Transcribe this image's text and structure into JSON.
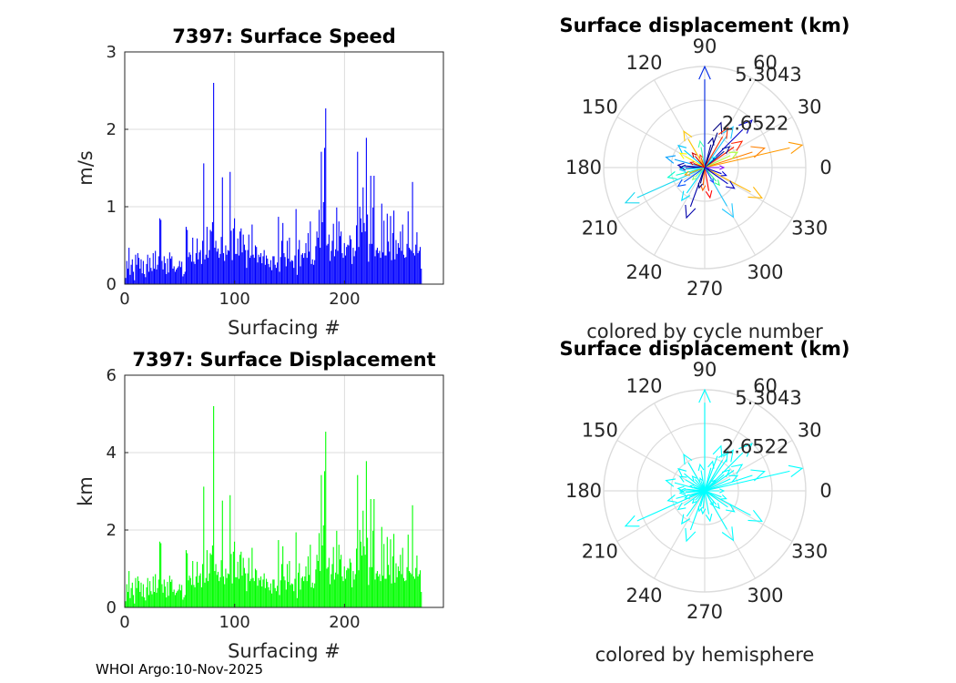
{
  "footer": "WHOI Argo:10-Nov-2025",
  "colors": {
    "speed_bars": "#0000ff",
    "displacement_bars": "#00ff00",
    "hemisphere": "#00ffff",
    "grid": "#dcdcdc",
    "axis": "#262626"
  },
  "chart_data": [
    {
      "type": "bar",
      "title": "7397: Surface Speed",
      "xlabel": "Surfacing #",
      "ylabel": "m/s",
      "xlim": [
        0,
        290
      ],
      "ylim": [
        0,
        3
      ],
      "xticks": [
        "0",
        "100",
        "200"
      ],
      "yticks": [
        "0",
        "1",
        "2",
        "3"
      ],
      "grid": true,
      "values": [
        0.08,
        0.3,
        0.2,
        0.47,
        0.12,
        0.25,
        0.32,
        0.16,
        0.05,
        0.38,
        0.25,
        0.4,
        0.34,
        0.2,
        0.32,
        0.14,
        0.3,
        0.13,
        0.09,
        0.26,
        0.38,
        0.16,
        0.34,
        0.21,
        0.17,
        0.4,
        0.2,
        0.43,
        0.19,
        0.25,
        0.36,
        0.85,
        0.83,
        0.3,
        0.19,
        0.36,
        0.27,
        0.13,
        0.33,
        0.15,
        0.41,
        0.33,
        0.36,
        0.2,
        0.23,
        0.16,
        0.19,
        0.21,
        0.23,
        0.3,
        0.22,
        0.29,
        0.1,
        0.13,
        0.16,
        0.74,
        0.7,
        0.35,
        0.41,
        0.38,
        0.29,
        0.6,
        0.29,
        0.26,
        0.4,
        0.59,
        0.32,
        0.41,
        0.44,
        0.26,
        0.56,
        1.56,
        0.32,
        0.38,
        0.74,
        0.34,
        0.44,
        0.7,
        0.68,
        0.8,
        2.6,
        0.47,
        0.56,
        0.42,
        0.46,
        0.34,
        0.39,
        0.61,
        1.38,
        0.4,
        0.3,
        0.5,
        0.38,
        0.44,
        0.43,
        1.45,
        0.69,
        0.31,
        0.72,
        0.85,
        0.39,
        0.39,
        0.59,
        0.37,
        0.68,
        0.72,
        0.41,
        0.64,
        0.51,
        0.44,
        0.21,
        0.44,
        0.64,
        0.34,
        0.37,
        0.77,
        0.38,
        0.34,
        0.5,
        0.48,
        0.28,
        0.38,
        0.35,
        0.4,
        0.27,
        0.36,
        0.44,
        0.25,
        0.37,
        0.33,
        0.26,
        0.22,
        0.31,
        0.18,
        0.36,
        0.36,
        0.25,
        0.21,
        0.28,
        0.87,
        0.16,
        0.35,
        0.56,
        0.79,
        0.4,
        0.35,
        0.23,
        0.56,
        0.33,
        0.6,
        0.29,
        0.31,
        0.3,
        0.21,
        0.37,
        0.97,
        0.12,
        0.45,
        0.57,
        0.23,
        0.38,
        0.4,
        0.34,
        0.4,
        0.53,
        0.34,
        0.66,
        0.42,
        0.81,
        0.26,
        0.32,
        0.25,
        0.31,
        0.49,
        0.68,
        0.6,
        0.96,
        0.47,
        1.71,
        0.8,
        1.06,
        1.76,
        2.27,
        0.5,
        0.52,
        0.64,
        0.3,
        0.43,
        0.56,
        0.78,
        0.36,
        0.45,
        0.99,
        0.43,
        0.81,
        0.62,
        0.68,
        0.4,
        0.34,
        0.53,
        0.37,
        0.48,
        0.51,
        0.5,
        0.63,
        0.58,
        0.26,
        0.47,
        0.36,
        0.43,
        0.76,
        1.71,
        0.48,
        1.0,
        0.85,
        0.67,
        1.25,
        0.79,
        0.68,
        1.89,
        0.9,
        0.29,
        0.52,
        1.4,
        0.52,
        0.99,
        1.4,
        0.36,
        0.44,
        0.47,
        0.4,
        0.43,
        0.34,
        1.04,
        0.41,
        0.82,
        0.37,
        0.37,
        0.91,
        0.55,
        0.42,
        0.88,
        0.31,
        0.66,
        0.95,
        0.32,
        0.57,
        0.39,
        0.53,
        0.47,
        0.68,
        0.43,
        0.77,
        0.38,
        0.34,
        0.35,
        0.52,
        0.94,
        0.47,
        0.45,
        0.43,
        1.32,
        0.4,
        0.37,
        0.51,
        0.67,
        0.4,
        0.43,
        0.48,
        0.2
      ]
    },
    {
      "type": "bar",
      "title": "7397: Surface Displacement",
      "xlabel": "Surfacing #",
      "ylabel": "km",
      "xlim": [
        0,
        290
      ],
      "ylim": [
        0,
        6
      ],
      "xticks": [
        "0",
        "100",
        "200"
      ],
      "yticks": [
        "0",
        "2",
        "4",
        "6"
      ],
      "grid": true,
      "values": [
        0.16,
        0.6,
        0.4,
        0.94,
        0.24,
        0.5,
        0.64,
        0.32,
        0.1,
        0.76,
        0.5,
        0.8,
        0.68,
        0.4,
        0.64,
        0.28,
        0.6,
        0.26,
        0.18,
        0.52,
        0.76,
        0.32,
        0.68,
        0.42,
        0.34,
        0.8,
        0.4,
        0.86,
        0.38,
        0.5,
        0.72,
        1.7,
        1.66,
        0.6,
        0.38,
        0.72,
        0.54,
        0.26,
        0.66,
        0.3,
        0.82,
        0.66,
        0.72,
        0.4,
        0.46,
        0.32,
        0.38,
        0.42,
        0.46,
        0.6,
        0.44,
        0.58,
        0.2,
        0.26,
        0.32,
        1.48,
        1.4,
        0.7,
        0.82,
        0.76,
        0.58,
        1.2,
        0.58,
        0.52,
        0.8,
        1.18,
        0.64,
        0.82,
        0.88,
        0.52,
        1.12,
        3.12,
        0.64,
        0.76,
        1.48,
        0.68,
        0.88,
        1.4,
        1.36,
        1.6,
        5.2,
        0.94,
        1.12,
        0.84,
        0.92,
        0.68,
        0.78,
        1.22,
        2.76,
        0.8,
        0.6,
        1.0,
        0.76,
        0.88,
        0.86,
        2.9,
        1.38,
        0.62,
        1.44,
        1.7,
        0.78,
        0.78,
        1.18,
        0.74,
        1.36,
        1.44,
        0.82,
        1.28,
        1.02,
        0.88,
        0.42,
        0.88,
        1.28,
        0.68,
        0.74,
        1.54,
        0.76,
        0.68,
        1.0,
        0.96,
        0.56,
        0.76,
        0.7,
        0.8,
        0.54,
        0.72,
        0.88,
        0.5,
        0.74,
        0.66,
        0.52,
        0.44,
        0.62,
        0.36,
        0.72,
        0.72,
        0.5,
        0.42,
        0.56,
        1.74,
        0.32,
        0.7,
        1.12,
        1.58,
        0.8,
        0.7,
        0.46,
        1.12,
        0.66,
        1.2,
        0.58,
        0.62,
        0.6,
        0.42,
        0.74,
        1.94,
        0.24,
        0.9,
        1.14,
        0.46,
        0.76,
        0.8,
        0.68,
        0.8,
        1.06,
        0.68,
        1.32,
        0.84,
        1.62,
        0.52,
        0.64,
        0.5,
        0.62,
        0.98,
        1.36,
        1.2,
        1.92,
        0.94,
        3.42,
        1.6,
        2.12,
        3.52,
        4.54,
        1.0,
        1.04,
        1.28,
        0.6,
        0.86,
        1.12,
        1.56,
        0.72,
        0.9,
        1.98,
        0.86,
        1.62,
        1.24,
        1.36,
        0.8,
        0.68,
        1.06,
        0.74,
        0.96,
        1.02,
        1.0,
        1.26,
        1.16,
        0.52,
        0.94,
        0.72,
        0.86,
        1.52,
        3.42,
        0.96,
        2.0,
        1.7,
        1.34,
        2.5,
        1.58,
        1.36,
        3.78,
        1.8,
        0.58,
        1.04,
        2.8,
        1.04,
        1.98,
        2.8,
        0.72,
        0.88,
        0.94,
        0.8,
        0.86,
        0.68,
        2.08,
        0.82,
        1.64,
        0.74,
        0.74,
        1.82,
        1.1,
        0.84,
        1.76,
        0.62,
        1.32,
        1.9,
        0.64,
        1.14,
        0.78,
        1.06,
        0.94,
        1.36,
        0.86,
        1.54,
        0.76,
        0.68,
        0.7,
        1.04,
        1.88,
        0.94,
        0.9,
        0.86,
        2.64,
        0.8,
        0.74,
        1.02,
        1.34,
        0.8,
        0.86,
        0.96,
        0.4
      ]
    },
    {
      "type": "polar-vectors",
      "title": "Surface displacement (km)",
      "xlabel": "colored by cycle number",
      "rmax": 5.3043,
      "rtick_labels": [
        "2.6522",
        "5.3043"
      ],
      "angle_labels": [
        "0",
        "30",
        "60",
        "90",
        "120",
        "150",
        "180",
        "210",
        "240",
        "270",
        "300",
        "330"
      ],
      "vectors": [
        {
          "r": 5.3,
          "theta": 90,
          "color": "#0028e6"
        },
        {
          "r": 5.25,
          "theta": 13,
          "color": "#ff9900"
        },
        {
          "r": 4.55,
          "theta": 204,
          "color": "#18d8f0"
        },
        {
          "r": 3.3,
          "theta": 18,
          "color": "#ff8000"
        },
        {
          "r": 3.4,
          "theta": 332,
          "color": "#ffb400"
        },
        {
          "r": 3.5,
          "theta": 45,
          "color": "#0000c8"
        },
        {
          "r": 2.6,
          "theta": 55,
          "color": "#20c8ff"
        },
        {
          "r": 3.0,
          "theta": 300,
          "color": "#20c8ff"
        },
        {
          "r": 2.2,
          "theta": 120,
          "color": "#ffc800"
        },
        {
          "r": 2.8,
          "theta": 250,
          "color": "#0000aa"
        },
        {
          "r": 2.1,
          "theta": 165,
          "color": "#00a0ff"
        },
        {
          "r": 2.0,
          "theta": 195,
          "color": "#00ffcc"
        },
        {
          "r": 2.5,
          "theta": 70,
          "color": "#000080"
        },
        {
          "r": 2.4,
          "theta": 60,
          "color": "#ff3300"
        },
        {
          "r": 2.4,
          "theta": 35,
          "color": "#ff2200"
        },
        {
          "r": 1.8,
          "theta": 140,
          "color": "#00c8ff"
        },
        {
          "r": 1.7,
          "theta": 215,
          "color": "#0050ff"
        },
        {
          "r": 1.6,
          "theta": 280,
          "color": "#ff0000"
        },
        {
          "r": 1.9,
          "theta": 25,
          "color": "#b0ff40"
        },
        {
          "r": 1.5,
          "theta": 150,
          "color": "#ffff00"
        },
        {
          "r": 1.9,
          "theta": 325,
          "color": "#0000c0"
        },
        {
          "r": 1.4,
          "theta": 100,
          "color": "#40ffb0"
        },
        {
          "r": 2.1,
          "theta": 235,
          "color": "#00e0ff"
        },
        {
          "r": 1.3,
          "theta": 180,
          "color": "#000090"
        },
        {
          "r": 1.2,
          "theta": 265,
          "color": "#ff6000"
        },
        {
          "r": 1.2,
          "theta": 310,
          "color": "#30ff80"
        },
        {
          "r": 1.0,
          "theta": 0,
          "color": "#8000ff"
        },
        {
          "r": 1.6,
          "theta": 75,
          "color": "#000090"
        },
        {
          "r": 1.0,
          "theta": 130,
          "color": "#c80000"
        },
        {
          "r": 1.1,
          "theta": 200,
          "color": "#ff9c00"
        },
        {
          "r": 0.9,
          "theta": 300,
          "color": "#2040ff"
        },
        {
          "r": 1.4,
          "theta": 175,
          "color": "#0000b0"
        },
        {
          "r": 0.8,
          "theta": 45,
          "color": "#00ffff"
        },
        {
          "r": 0.9,
          "theta": 225,
          "color": "#8cff70"
        },
        {
          "r": 1.2,
          "theta": 340,
          "color": "#0000d0"
        },
        {
          "r": 0.7,
          "theta": 110,
          "color": "#ff4000"
        },
        {
          "r": 1.3,
          "theta": 185,
          "color": "#00d0ff"
        },
        {
          "r": 1.7,
          "theta": 40,
          "color": "#0018a0"
        },
        {
          "r": 1.1,
          "theta": 255,
          "color": "#000070"
        },
        {
          "r": 0.8,
          "theta": 160,
          "color": "#e00000"
        }
      ]
    },
    {
      "type": "polar-vectors",
      "title": "Surface displacement (km)",
      "xlabel": "colored by hemisphere",
      "rmax": 5.3043,
      "rtick_labels": [
        "2.6522",
        "5.3043"
      ],
      "angle_labels": [
        "0",
        "30",
        "60",
        "90",
        "120",
        "150",
        "180",
        "210",
        "240",
        "270",
        "300",
        "330"
      ],
      "color": "#00ffff",
      "vectors": [
        {
          "r": 5.3,
          "theta": 90
        },
        {
          "r": 5.25,
          "theta": 13
        },
        {
          "r": 4.55,
          "theta": 204
        },
        {
          "r": 3.3,
          "theta": 18
        },
        {
          "r": 3.4,
          "theta": 332
        },
        {
          "r": 3.5,
          "theta": 45
        },
        {
          "r": 2.6,
          "theta": 55
        },
        {
          "r": 3.0,
          "theta": 300
        },
        {
          "r": 2.2,
          "theta": 120
        },
        {
          "r": 2.8,
          "theta": 250
        },
        {
          "r": 2.1,
          "theta": 165
        },
        {
          "r": 2.0,
          "theta": 195
        },
        {
          "r": 2.5,
          "theta": 70
        },
        {
          "r": 2.4,
          "theta": 60
        },
        {
          "r": 2.4,
          "theta": 35
        },
        {
          "r": 1.8,
          "theta": 140
        },
        {
          "r": 1.7,
          "theta": 215
        },
        {
          "r": 1.6,
          "theta": 280
        },
        {
          "r": 1.9,
          "theta": 25
        },
        {
          "r": 1.5,
          "theta": 150
        },
        {
          "r": 1.9,
          "theta": 325
        },
        {
          "r": 1.4,
          "theta": 100
        },
        {
          "r": 2.1,
          "theta": 235
        },
        {
          "r": 1.3,
          "theta": 180
        },
        {
          "r": 1.2,
          "theta": 265
        },
        {
          "r": 1.2,
          "theta": 310
        },
        {
          "r": 1.0,
          "theta": 0
        },
        {
          "r": 1.6,
          "theta": 75
        },
        {
          "r": 1.0,
          "theta": 130
        },
        {
          "r": 1.1,
          "theta": 200
        },
        {
          "r": 0.9,
          "theta": 300
        },
        {
          "r": 1.4,
          "theta": 175
        },
        {
          "r": 0.8,
          "theta": 45
        },
        {
          "r": 0.9,
          "theta": 225
        },
        {
          "r": 1.2,
          "theta": 340
        },
        {
          "r": 0.7,
          "theta": 110
        },
        {
          "r": 1.3,
          "theta": 185
        },
        {
          "r": 1.7,
          "theta": 40
        },
        {
          "r": 1.1,
          "theta": 255
        },
        {
          "r": 0.8,
          "theta": 160
        }
      ]
    }
  ]
}
